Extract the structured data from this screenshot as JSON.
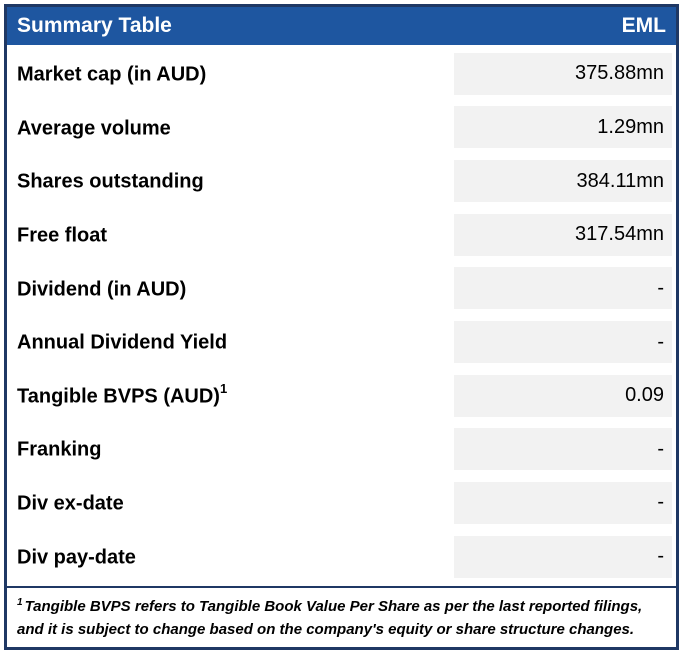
{
  "header": {
    "title": "Summary Table",
    "ticker": "EML"
  },
  "rows": [
    {
      "label": "Market cap (in AUD)",
      "sup": "",
      "value": "375.88mn"
    },
    {
      "label": "Average volume",
      "sup": "",
      "value": "1.29mn"
    },
    {
      "label": "Shares outstanding",
      "sup": "",
      "value": "384.11mn"
    },
    {
      "label": "Free float",
      "sup": "",
      "value": "317.54mn"
    },
    {
      "label": "Dividend (in AUD)",
      "sup": "",
      "value": "-"
    },
    {
      "label": "Annual Dividend Yield",
      "sup": "",
      "value": "-"
    },
    {
      "label": "Tangible BVPS (AUD)",
      "sup": "1",
      "value": "0.09"
    },
    {
      "label": "Franking",
      "sup": "",
      "value": "-"
    },
    {
      "label": "Div ex-date",
      "sup": "",
      "value": "-"
    },
    {
      "label": "Div pay-date",
      "sup": "",
      "value": "-"
    }
  ],
  "footnote": {
    "sup": "1",
    "text": "Tangible BVPS refers to Tangible Book Value Per Share as per the last reported filings, and it is subject to change based on the company's equity or share structure changes."
  },
  "colors": {
    "header_bg": "#1e56a0",
    "border": "#1f3864",
    "value_cell_bg": "#f2f2f2",
    "header_text": "#ffffff"
  }
}
